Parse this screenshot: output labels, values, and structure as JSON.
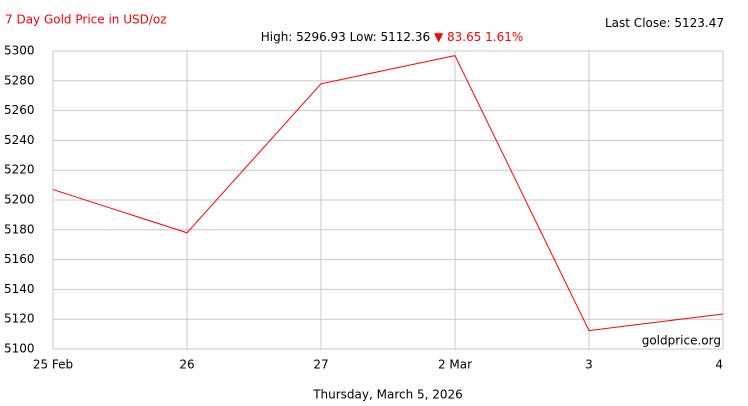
{
  "chart_data": {
    "type": "line",
    "title": "7 Day Gold Price in USD/oz",
    "high_label": "High:",
    "high": 5296.93,
    "low_label": "Low:",
    "low": 5112.36,
    "change_text": "▼ 83.65 1.61%",
    "last_close_label": "Last Close:",
    "last_close": 5123.47,
    "source": "goldprice.org",
    "x_label": "Thursday, March 5, 2026",
    "categories": [
      "25 Feb",
      "26",
      "27",
      "2 Mar",
      "3",
      "4"
    ],
    "series": [
      {
        "name": "Gold",
        "color": "#ff0000",
        "values": [
          5207,
          5178,
          5278,
          5296.93,
          5112.36,
          5123.47
        ]
      }
    ],
    "ylim": [
      5100,
      5300
    ],
    "yticks": [
      5100,
      5120,
      5140,
      5160,
      5180,
      5200,
      5220,
      5240,
      5260,
      5280,
      5300
    ],
    "grid": true
  }
}
